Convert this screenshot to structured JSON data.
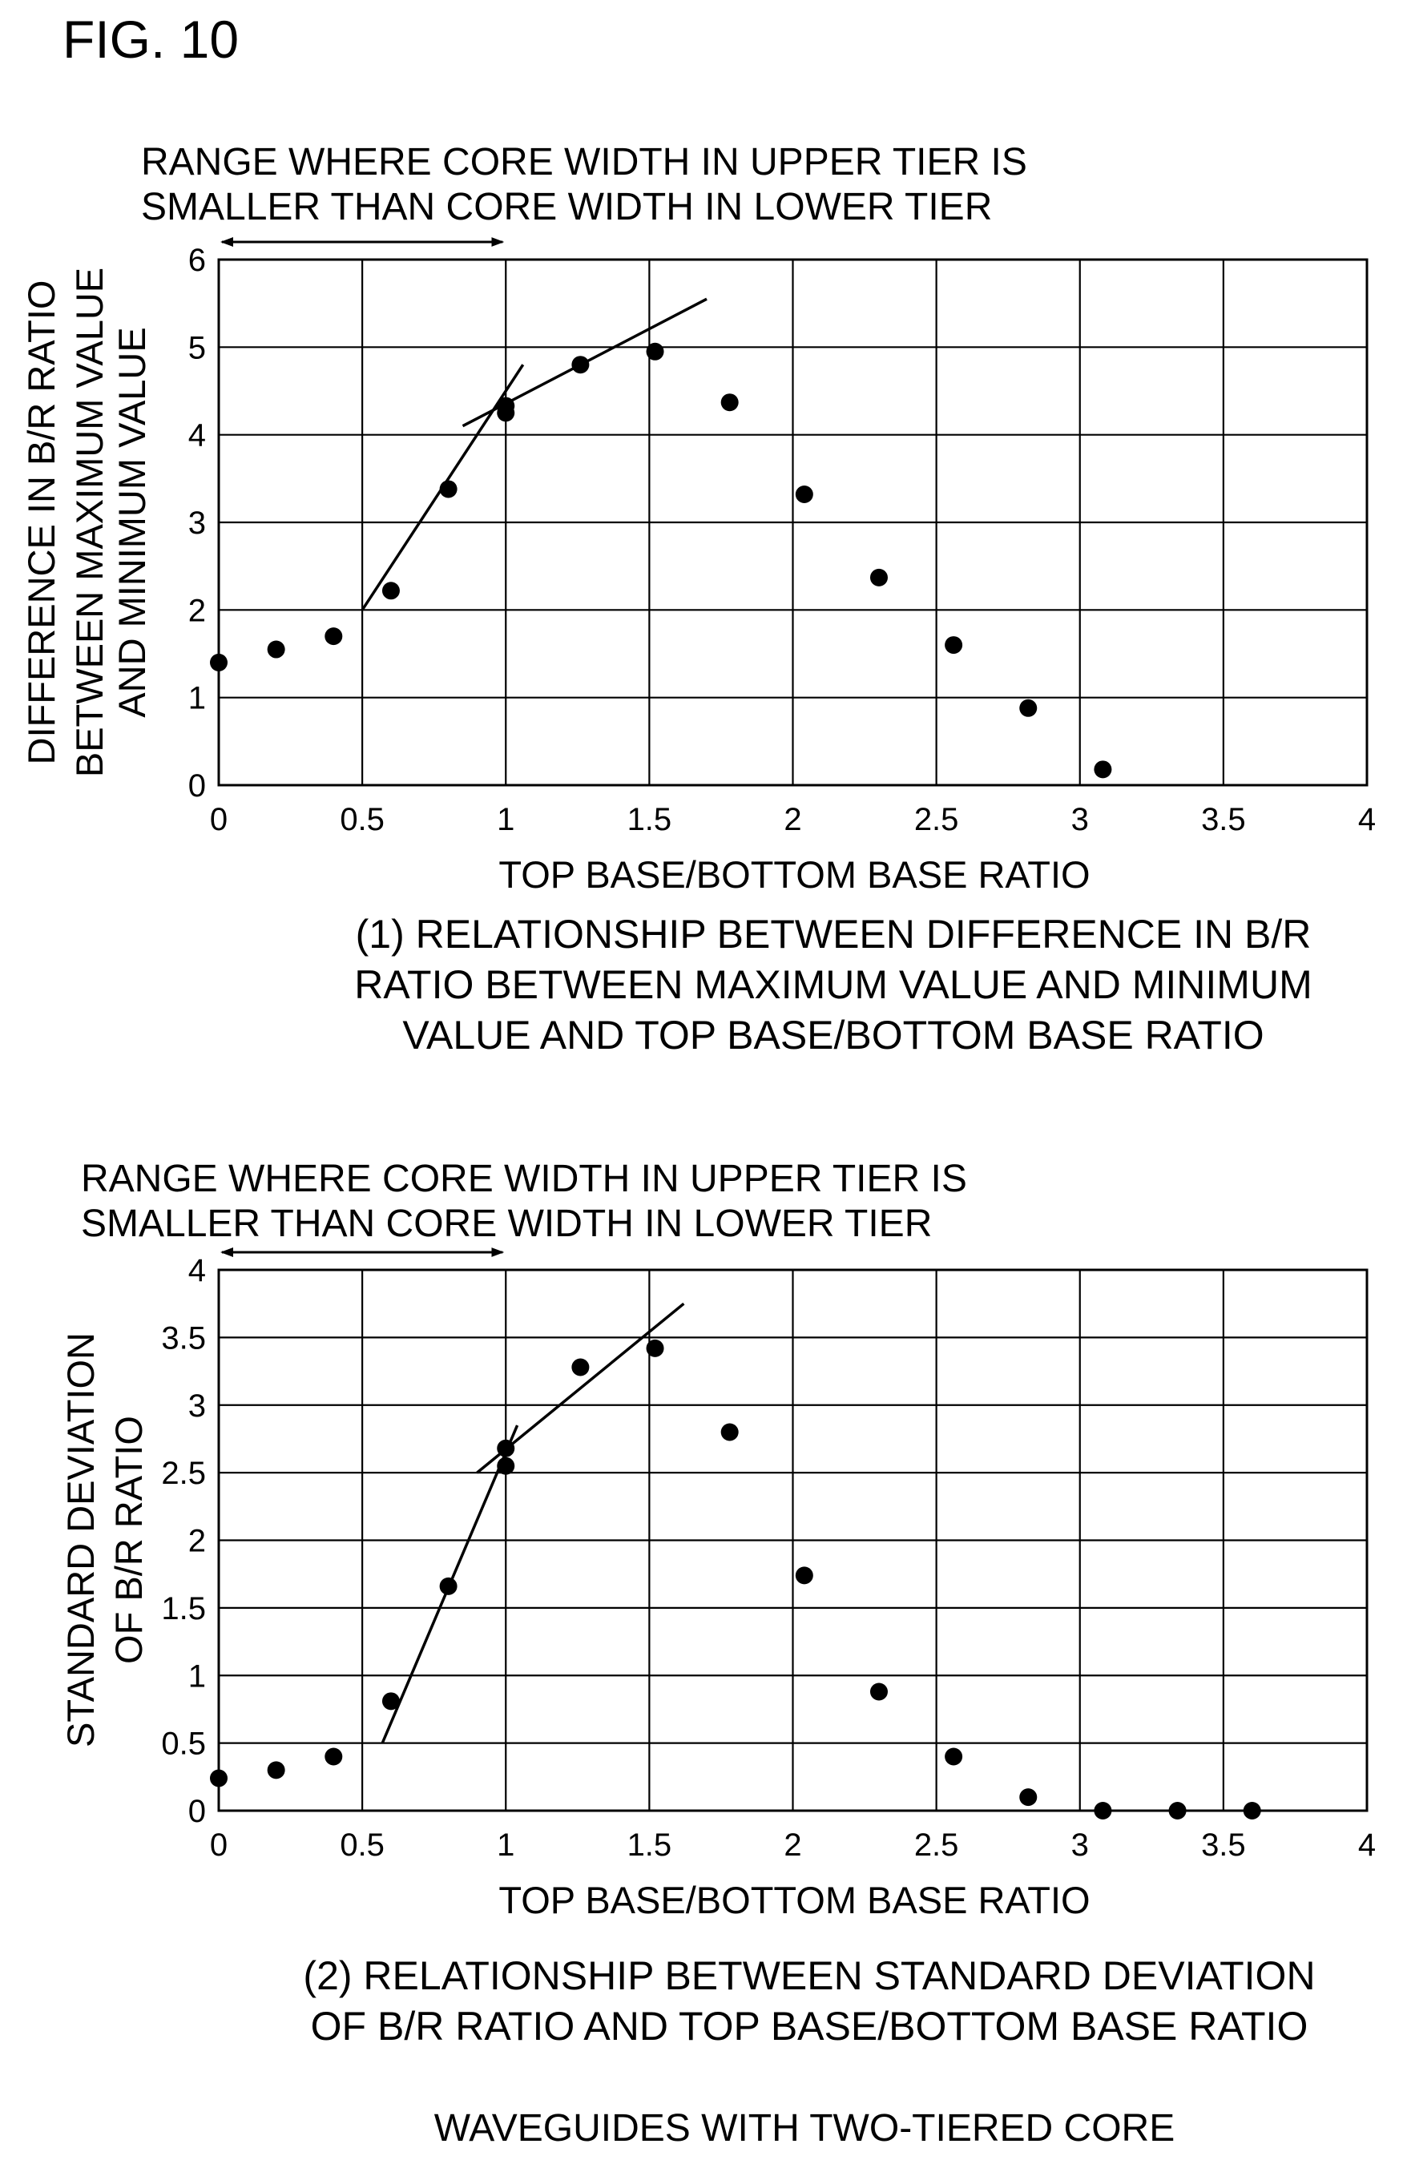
{
  "figure": {
    "label": "FIG. 10",
    "footer": "WAVEGUIDES WITH TWO-TIERED CORE"
  },
  "chart_data": [
    {
      "type": "scatter",
      "range_annotation": [
        "RANGE WHERE CORE WIDTH IN UPPER TIER IS",
        "SMALLER THAN CORE WIDTH IN LOWER TIER"
      ],
      "range_annotation_x": [
        0,
        1
      ],
      "ylabel": [
        "DIFFERENCE IN B/R RATIO",
        "BETWEEN MAXIMUM VALUE",
        "AND MINIMUM VALUE"
      ],
      "xlabel": "TOP BASE/BOTTOM BASE RATIO",
      "caption": [
        "(1) RELATIONSHIP BETWEEN DIFFERENCE IN B/R",
        "RATIO BETWEEN MAXIMUM VALUE AND MINIMUM",
        "VALUE AND TOP BASE/BOTTOM BASE RATIO"
      ],
      "xlim": [
        0,
        4
      ],
      "ylim": [
        0,
        6
      ],
      "xticks": [
        "0",
        "0.5",
        "1",
        "1.5",
        "2",
        "2.5",
        "3",
        "3.5",
        "4"
      ],
      "yticks": [
        "0",
        "1",
        "2",
        "3",
        "4",
        "5",
        "6"
      ],
      "grid": true,
      "series": [
        {
          "x": [
            0,
            0.2,
            0.4,
            0.6,
            0.8,
            1.0,
            1.0,
            1.26,
            1.52,
            1.78,
            2.04,
            2.3,
            2.56,
            2.82,
            3.08
          ],
          "y": [
            1.4,
            1.55,
            1.7,
            2.22,
            3.38,
            4.25,
            4.33,
            4.8,
            4.95,
            4.37,
            3.32,
            2.37,
            1.6,
            0.88,
            0.18
          ]
        }
      ],
      "fit_lines": [
        {
          "x": [
            0.5,
            1.06
          ],
          "y": [
            2.0,
            4.8
          ]
        },
        {
          "x": [
            0.85,
            1.7
          ],
          "y": [
            4.1,
            5.55
          ]
        }
      ]
    },
    {
      "type": "scatter",
      "range_annotation": [
        "RANGE WHERE CORE WIDTH IN UPPER TIER IS",
        "SMALLER THAN CORE WIDTH IN LOWER TIER"
      ],
      "range_annotation_x": [
        0,
        1
      ],
      "ylabel": [
        "STANDARD DEVIATION",
        "OF B/R RATIO"
      ],
      "xlabel": "TOP BASE/BOTTOM BASE RATIO",
      "caption": [
        "(2) RELATIONSHIP BETWEEN STANDARD DEVIATION",
        "OF B/R RATIO AND TOP BASE/BOTTOM BASE RATIO"
      ],
      "xlim": [
        0,
        4
      ],
      "ylim": [
        0,
        4
      ],
      "xticks": [
        "0",
        "0.5",
        "1",
        "1.5",
        "2",
        "2.5",
        "3",
        "3.5",
        "4"
      ],
      "yticks": [
        "0",
        "0.5",
        "1",
        "1.5",
        "2",
        "2.5",
        "3",
        "3.5",
        "4"
      ],
      "grid": true,
      "series": [
        {
          "x": [
            0,
            0.2,
            0.4,
            0.6,
            0.8,
            1.0,
            1.0,
            1.26,
            1.52,
            1.78,
            2.04,
            2.3,
            2.56,
            2.82,
            3.08,
            3.34,
            3.6
          ],
          "y": [
            0.24,
            0.3,
            0.4,
            0.81,
            1.66,
            2.55,
            2.68,
            3.28,
            3.42,
            2.8,
            1.74,
            0.88,
            0.4,
            0.1,
            0.0,
            0.0,
            0.0
          ]
        }
      ],
      "fit_lines": [
        {
          "x": [
            0.57,
            1.04
          ],
          "y": [
            0.5,
            2.85
          ]
        },
        {
          "x": [
            0.9,
            1.62
          ],
          "y": [
            2.5,
            3.75
          ]
        }
      ]
    }
  ]
}
